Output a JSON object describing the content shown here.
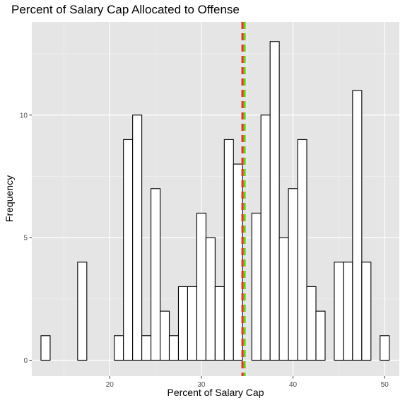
{
  "chart_data": {
    "type": "histogram",
    "title": "Percent of Salary Cap Allocated to Offense",
    "xlabel": "Percent of Salary Cap",
    "ylabel": "Frequency",
    "xlim": [
      11.5,
      51.6
    ],
    "ylim": [
      -0.65,
      13.8
    ],
    "x_ticks": [
      20,
      30,
      40,
      50
    ],
    "x_tick_labels": [
      "20",
      "30",
      "40",
      "50"
    ],
    "y_ticks": [
      0,
      5,
      10
    ],
    "y_tick_labels": [
      "0",
      "5",
      "10"
    ],
    "grid": true,
    "panel_background": "#e5e5e5",
    "bar_fill": "#ffffff",
    "bar_outline": "#000000",
    "bin_width": 1,
    "bin_start": 12.5,
    "counts": [
      1,
      0,
      0,
      0,
      4,
      0,
      0,
      0,
      1,
      9,
      10,
      1,
      7,
      2,
      1,
      3,
      3,
      6,
      5,
      3,
      9,
      8,
      0,
      6,
      10,
      13,
      5,
      7,
      9,
      3,
      2,
      0,
      4,
      4,
      11,
      4,
      0,
      1
    ],
    "reference_lines": [
      {
        "x": 34.6,
        "color": "#e8312a",
        "style": "dashed"
      },
      {
        "x": 34.6,
        "color": "#62d214",
        "style": "dashed"
      }
    ]
  }
}
